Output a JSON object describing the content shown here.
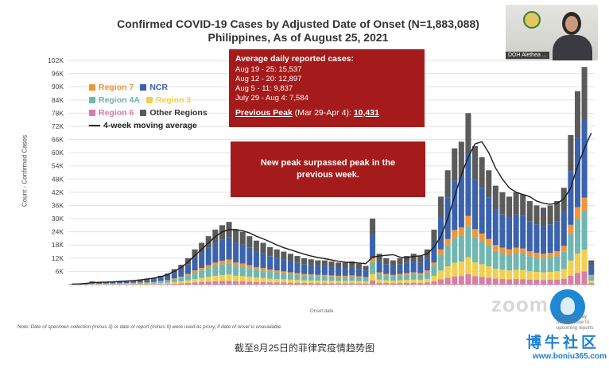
{
  "title_line1": "Confirmed COVID-19 Cases by Adjusted Date of Onset (N=1,883,088)",
  "title_line2": "Philippines, As of August 25, 2021",
  "ylabel": "Count - Confirmed Cases",
  "xlabel": "Onset date",
  "legend": [
    {
      "name": "Region 7",
      "color": "#f0953a"
    },
    {
      "name": "NCR",
      "color": "#3b63ad"
    },
    {
      "name": "Region 4A",
      "color": "#6fb7b0"
    },
    {
      "name": "Region 3",
      "color": "#f3cf4e"
    },
    {
      "name": "Region 6",
      "color": "#d77fa6"
    },
    {
      "name": "Other Regions",
      "color": "#5b5b5b"
    },
    {
      "name": "4-week moving average",
      "color": "#222222"
    }
  ],
  "box1": {
    "heading": "Average daily reported cases:",
    "lines": [
      "Aug 19 - 25: 15,537",
      "Aug 12 - 20: 12,897",
      "Aug 5 - 11: 9,837",
      "July 29 - Aug 4: 7,584"
    ],
    "peak_label": "Previous Peak",
    "peak_range": " (Mar 29-Apr 4): ",
    "peak_value": "10,431"
  },
  "box2": "New peak surpassed peak in the previous week.",
  "note": "Note: Date of specimen collection (minus 3) or date of report (minus 9) were used as proxy, if date of onset is unavailable.",
  "caption": "截至8月25日的菲律宾疫情趋势图",
  "video_label": "DOH Alethea ...",
  "watermark": {
    "zoom": "zoom",
    "small": "This area may\nbe blank due to\nupcoming reports",
    "site": "博牛社区",
    "url": "www.boniu365.com"
  },
  "chart_data": {
    "type": "bar",
    "stacked": true,
    "title": "Confirmed COVID-19 Cases by Adjusted Date of Onset (N=1,883,088)",
    "subtitle": "Philippines, As of August 25, 2021",
    "xlabel": "Onset date",
    "ylabel": "Count - Confirmed Cases",
    "ylim": [
      0,
      102000
    ],
    "yticks": [
      "6K",
      "12K",
      "18K",
      "24K",
      "30K",
      "36K",
      "42K",
      "48K",
      "54K",
      "60K",
      "66K",
      "72K",
      "78K",
      "84K",
      "90K",
      "96K",
      "102K"
    ],
    "ytick_values": [
      6000,
      12000,
      18000,
      24000,
      30000,
      36000,
      42000,
      48000,
      54000,
      60000,
      66000,
      72000,
      78000,
      84000,
      90000,
      96000,
      102000
    ],
    "legend_position": "top-left",
    "weekly_totals": [
      200,
      300,
      600,
      1500,
      900,
      1200,
      1300,
      1500,
      1700,
      2000,
      2300,
      2700,
      3000,
      4000,
      5000,
      7000,
      9000,
      12000,
      16000,
      19000,
      22000,
      25000,
      27000,
      28500,
      25000,
      24000,
      22000,
      20000,
      19000,
      17000,
      16000,
      15000,
      14000,
      13000,
      12000,
      11500,
      11000,
      11000,
      10500,
      10000,
      10000,
      10500,
      9500,
      8500,
      30000,
      14000,
      12000,
      11000,
      12000,
      13000,
      14000,
      13000,
      16000,
      25000,
      40000,
      52000,
      62000,
      65000,
      78000,
      63000,
      58000,
      52000,
      45000,
      42000,
      40000,
      42000,
      41000,
      38000,
      36000,
      35000,
      36000,
      38000,
      44000,
      68000,
      88000,
      99000,
      11000
    ],
    "moving_average": [
      200,
      300,
      500,
      800,
      1000,
      1100,
      1200,
      1400,
      1600,
      1800,
      2100,
      2500,
      2900,
      3600,
      4500,
      6000,
      7800,
      10200,
      13200,
      16000,
      19000,
      21800,
      24000,
      25000,
      25000,
      24500,
      23500,
      22000,
      20800,
      19500,
      18000,
      16800,
      15800,
      14800,
      13800,
      13000,
      12300,
      11800,
      11200,
      10600,
      10200,
      10000,
      9800,
      9500,
      12500,
      13000,
      13300,
      13600,
      12500,
      12200,
      12800,
      13100,
      14000,
      17000,
      22000,
      30000,
      40000,
      50000,
      58000,
      64000,
      65000,
      60000,
      53000,
      48000,
      44000,
      42000,
      41000,
      40000,
      38000,
      37000,
      36500,
      37000,
      39000,
      44000,
      54000,
      62000,
      69000
    ],
    "series": [
      {
        "name": "Region 6",
        "share": 0.06,
        "color": "#d77fa6"
      },
      {
        "name": "Region 3",
        "share": 0.1,
        "color": "#f3cf4e"
      },
      {
        "name": "Region 4A",
        "share": 0.18,
        "color": "#6fb7b0"
      },
      {
        "name": "Region 7",
        "share": 0.06,
        "color": "#f0953a"
      },
      {
        "name": "NCR",
        "share": 0.36,
        "color": "#3b63ad"
      },
      {
        "name": "Other Regions",
        "share": 0.24,
        "color": "#5b5b5b"
      }
    ]
  }
}
